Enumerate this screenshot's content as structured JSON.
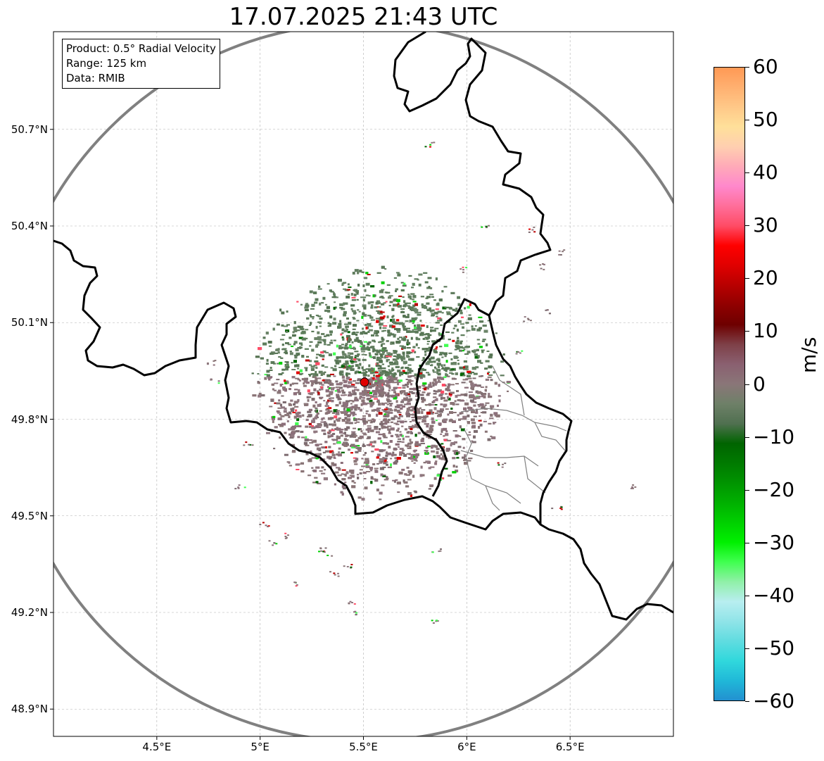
{
  "title": "17.07.2025 21:43 UTC",
  "info_box": {
    "line1": "Product: 0.5° Radial Velocity",
    "line2": "Range: 125 km",
    "line3": "Data: RMIB"
  },
  "map": {
    "lon_range": [
      4.0,
      7.0
    ],
    "lat_range": [
      48.8,
      50.98
    ],
    "lat_ticks": [
      {
        "value": 50.7,
        "label": "50.7°N"
      },
      {
        "value": 50.4,
        "label": "50.4°N"
      },
      {
        "value": 50.1,
        "label": "50.1°N"
      },
      {
        "value": 49.8,
        "label": "49.8°N"
      },
      {
        "value": 49.5,
        "label": "49.5°N"
      },
      {
        "value": 49.2,
        "label": "49.2°N"
      },
      {
        "value": 48.9,
        "label": "48.9°N"
      }
    ],
    "lon_ticks": [
      {
        "value": 4.5,
        "label": "4.5°E"
      },
      {
        "value": 5.0,
        "label": "5°E"
      },
      {
        "value": 5.5,
        "label": "5.5°E"
      },
      {
        "value": 6.0,
        "label": "6°E"
      },
      {
        "value": 6.5,
        "label": "6.5°E"
      }
    ],
    "radar_site": {
      "lon": 5.505,
      "lat": 49.915
    },
    "range_km": 125,
    "colors": {
      "border": "#000000",
      "range_ring": "#808080",
      "admin_lines": "#808080",
      "grid": "#b0b0b0",
      "site_marker": "#e00000"
    }
  },
  "colorbar": {
    "unit": "m/s",
    "min": -60,
    "max": 60,
    "tick_labels": [
      "60",
      "50",
      "40",
      "30",
      "20",
      "10",
      "0",
      "−10",
      "−20",
      "−30",
      "−40",
      "−50",
      "−60"
    ],
    "tick_values": [
      60,
      50,
      40,
      30,
      20,
      10,
      0,
      -10,
      -20,
      -30,
      -40,
      -50,
      -60
    ],
    "gradient_colors": [
      "#ff9955",
      "#ffb070",
      "#ffc888",
      "#ffe09a",
      "#ffcfb0",
      "#ffaab8",
      "#ff88cc",
      "#ff6e9a",
      "#ff4c66",
      "#ff0000",
      "#e00000",
      "#b80000",
      "#900000",
      "#6e0000",
      "#7e4048",
      "#8a6070",
      "#8a7678",
      "#6e8068",
      "#507050",
      "#006400",
      "#007a00",
      "#009400",
      "#00b000",
      "#00d000",
      "#00f000",
      "#40ff50",
      "#90f0a8",
      "#b8eef0",
      "#90e4e8",
      "#60dce0",
      "#30d8dc",
      "#20b8d8",
      "#2290d0"
    ]
  }
}
